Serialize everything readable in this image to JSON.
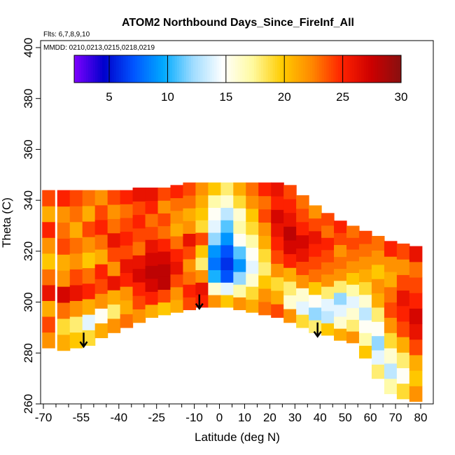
{
  "chart_data": {
    "type": "heatmap",
    "title": "ATOM2 Northbound Days_Since_FireInf_All",
    "annotations": {
      "flights": "Flts: 6,7,8,9,10",
      "dates": "MMDD: 0210,0213,0215,0218,0219"
    },
    "xlabel": "Latitude (deg N)",
    "ylabel": "Theta (C)",
    "xlim": [
      -70,
      80
    ],
    "ylim": [
      260,
      400
    ],
    "x_major_ticks": [
      -70,
      -55,
      -40,
      -25,
      -10,
      0,
      10,
      20,
      30,
      40,
      50,
      60,
      70,
      80
    ],
    "x_minor_ticks": [
      -65,
      -60,
      -50,
      -45,
      -35,
      -30,
      -20,
      -15,
      -5,
      5,
      15,
      25,
      35,
      45,
      55,
      65,
      75
    ],
    "x_tick_labels": [
      "-70",
      "-55",
      "-40",
      "-25",
      "-10",
      "0",
      "10",
      "20",
      "30",
      "40",
      "50",
      "60",
      "70",
      "80"
    ],
    "y_ticks": [
      260,
      280,
      300,
      320,
      340,
      360,
      380,
      400
    ],
    "y_tick_labels": [
      "260",
      "280",
      "300",
      "320",
      "340",
      "360",
      "380",
      "400"
    ],
    "colorbar": {
      "range": [
        2,
        30
      ],
      "ticks": [
        5,
        10,
        15,
        20,
        25,
        30
      ],
      "tick_labels": [
        "5",
        "10",
        "15",
        "20",
        "25",
        "30"
      ],
      "colors": [
        "#7f00ff",
        "#0000cc",
        "#0055ff",
        "#00aaff",
        "#9fdcff",
        "#ffffff",
        "#fffaa0",
        "#ffcc00",
        "#ff8800",
        "#ff2200",
        "#cc0000",
        "#881010"
      ]
    },
    "series": [
      {
        "x": -68,
        "bottom": 282,
        "top": 344,
        "values": [
          22,
          24,
          21,
          26,
          23,
          20,
          22,
          25,
          21,
          24
        ]
      },
      {
        "x": -62,
        "bottom": 281,
        "top": 344,
        "values": [
          21,
          19,
          23,
          27,
          22,
          21,
          24,
          23,
          22,
          25
        ]
      },
      {
        "x": -57,
        "bottom": 282,
        "top": 344,
        "values": [
          20,
          18,
          22,
          26,
          24,
          22,
          23,
          21,
          23,
          24
        ]
      },
      {
        "x": -52,
        "bottom": 283,
        "top": 344,
        "values": [
          19,
          14,
          21,
          25,
          23,
          20,
          22,
          24,
          21,
          23
        ]
      },
      {
        "x": -47,
        "bottom": 286,
        "top": 344,
        "values": [
          21,
          15,
          22,
          24,
          25,
          21,
          23,
          25,
          24,
          22
        ]
      },
      {
        "x": -42,
        "bottom": 288,
        "top": 344,
        "values": [
          22,
          18,
          21,
          26,
          22,
          24,
          26,
          23,
          22,
          24
        ]
      },
      {
        "x": -37,
        "bottom": 290,
        "top": 344,
        "values": [
          23,
          21,
          22,
          25,
          26,
          24,
          25,
          24,
          23,
          25
        ]
      },
      {
        "x": -32,
        "bottom": 292,
        "top": 345,
        "values": [
          22,
          24,
          25,
          27,
          26,
          23,
          24,
          25,
          24,
          26
        ]
      },
      {
        "x": -27,
        "bottom": 294,
        "top": 345,
        "values": [
          21,
          25,
          27,
          28,
          27,
          26,
          24,
          23,
          25,
          26
        ]
      },
      {
        "x": -22,
        "bottom": 295,
        "top": 345,
        "values": [
          20,
          24,
          28,
          28,
          27,
          25,
          23,
          24,
          22,
          24
        ]
      },
      {
        "x": -17,
        "bottom": 296,
        "top": 346,
        "values": [
          21,
          22,
          24,
          26,
          25,
          23,
          21,
          22,
          23,
          25
        ]
      },
      {
        "x": -12,
        "bottom": 297,
        "top": 347,
        "values": [
          24,
          25,
          23,
          22,
          24,
          26,
          22,
          21,
          23,
          24
        ]
      },
      {
        "x": -7,
        "bottom": 298,
        "top": 347,
        "values": [
          25,
          26,
          22,
          18,
          20,
          24,
          19,
          20,
          21,
          22
        ]
      },
      {
        "x": -2,
        "bottom": 298,
        "top": 347,
        "values": [
          22,
          16,
          10,
          8,
          9,
          12,
          14,
          15,
          17,
          20
        ]
      },
      {
        "x": 3,
        "bottom": 298,
        "top": 347,
        "values": [
          20,
          14,
          7,
          6,
          7,
          9,
          11,
          13,
          16,
          18
        ]
      },
      {
        "x": 8,
        "bottom": 297,
        "top": 347,
        "values": [
          22,
          17,
          12,
          9,
          11,
          15,
          17,
          16,
          19,
          21
        ]
      },
      {
        "x": 13,
        "bottom": 296,
        "top": 347,
        "values": [
          21,
          19,
          16,
          14,
          15,
          17,
          19,
          20,
          22,
          23
        ]
      },
      {
        "x": 18,
        "bottom": 295,
        "top": 347,
        "values": [
          23,
          22,
          20,
          18,
          19,
          21,
          22,
          24,
          23,
          25
        ]
      },
      {
        "x": 23,
        "bottom": 294,
        "top": 347,
        "values": [
          24,
          21,
          19,
          22,
          24,
          25,
          26,
          27,
          25,
          26
        ]
      },
      {
        "x": 28,
        "bottom": 292,
        "top": 346,
        "values": [
          22,
          16,
          18,
          21,
          25,
          27,
          28,
          26,
          25,
          24
        ]
      },
      {
        "x": 33,
        "bottom": 290,
        "top": 342,
        "values": [
          19,
          14,
          16,
          22,
          24,
          26,
          27,
          25,
          24,
          23
        ]
      },
      {
        "x": 38,
        "bottom": 288,
        "top": 338,
        "values": [
          18,
          12,
          15,
          20,
          23,
          24,
          25,
          26,
          24,
          22
        ]
      },
      {
        "x": 43,
        "bottom": 287,
        "top": 335,
        "values": [
          20,
          13,
          14,
          18,
          22,
          23,
          24,
          25,
          23,
          24
        ]
      },
      {
        "x": 48,
        "bottom": 285,
        "top": 332,
        "values": [
          21,
          16,
          14,
          12,
          18,
          22,
          23,
          22,
          24,
          25
        ]
      },
      {
        "x": 53,
        "bottom": 284,
        "top": 330,
        "values": [
          22,
          18,
          16,
          14,
          17,
          20,
          22,
          23,
          24,
          23
        ]
      },
      {
        "x": 58,
        "bottom": 278,
        "top": 328,
        "values": [
          20,
          17,
          15,
          13,
          16,
          19,
          21,
          22,
          23,
          24
        ]
      },
      {
        "x": 63,
        "bottom": 270,
        "top": 326,
        "values": [
          18,
          14,
          12,
          15,
          18,
          21,
          22,
          20,
          22,
          23
        ]
      },
      {
        "x": 68,
        "bottom": 264,
        "top": 324,
        "values": [
          17,
          13,
          16,
          19,
          22,
          24,
          23,
          21,
          22,
          25
        ]
      },
      {
        "x": 73,
        "bottom": 262,
        "top": 323,
        "values": [
          19,
          15,
          18,
          21,
          24,
          25,
          26,
          24,
          22,
          24
        ]
      },
      {
        "x": 78,
        "bottom": 261,
        "top": 322,
        "values": [
          22,
          20,
          21,
          24,
          26,
          27,
          25,
          24,
          23,
          26
        ]
      }
    ],
    "arrows": [
      {
        "x": -54,
        "theta": 288
      },
      {
        "x": -8,
        "theta": 303
      },
      {
        "x": 39,
        "theta": 292
      }
    ],
    "grid": false
  }
}
